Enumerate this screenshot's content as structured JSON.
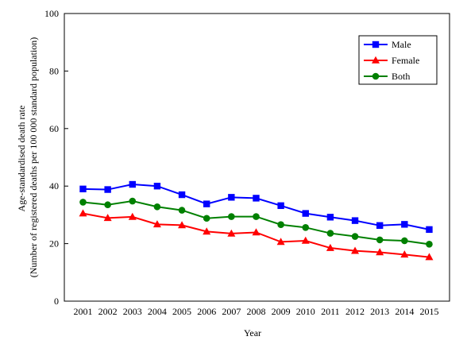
{
  "chart_data": {
    "type": "line",
    "title": "",
    "xlabel": "Year",
    "ylabel": [
      "Age-standardised death rate",
      "(Number of registered deaths per 100 000 standard population)"
    ],
    "ylim": [
      0,
      100
    ],
    "yticks": [
      "0",
      "20",
      "40",
      "60",
      "80",
      "100"
    ],
    "x": [
      "2001",
      "2002",
      "2003",
      "2004",
      "2005",
      "2006",
      "2007",
      "2008",
      "2009",
      "2010",
      "2011",
      "2012",
      "2013",
      "2014",
      "2015"
    ],
    "grid": false,
    "legend_position": "top-right",
    "series": [
      {
        "name": "Male",
        "color": "#0000FF",
        "marker": "square",
        "values": [
          39.0,
          38.8,
          40.6,
          40.0,
          37.0,
          33.8,
          36.1,
          35.8,
          33.2,
          30.5,
          29.2,
          28.0,
          26.3,
          26.7,
          24.9
        ]
      },
      {
        "name": "Female",
        "color": "#FF0000",
        "marker": "triangle",
        "values": [
          30.5,
          28.9,
          29.3,
          26.7,
          26.4,
          24.2,
          23.5,
          23.9,
          20.6,
          21.0,
          18.5,
          17.5,
          17.0,
          16.2,
          15.3
        ]
      },
      {
        "name": "Both",
        "color": "#008000",
        "marker": "circle",
        "values": [
          34.4,
          33.5,
          34.8,
          32.8,
          31.6,
          28.8,
          29.4,
          29.4,
          26.6,
          25.6,
          23.6,
          22.5,
          21.3,
          21.0,
          19.8
        ]
      }
    ]
  }
}
